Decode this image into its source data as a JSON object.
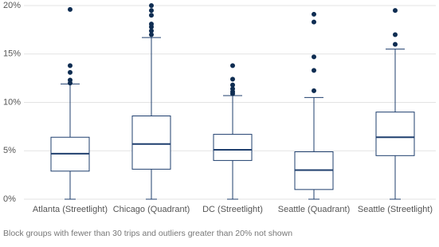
{
  "chart_data": {
    "type": "box",
    "categories": [
      "Atlanta (Streetlight)",
      "Chicago (Quadrant)",
      "DC (Streetlight)",
      "Seattle (Quadrant)",
      "Seattle (Streetlight)"
    ],
    "boxes": [
      {
        "low": 0,
        "q1": 2.9,
        "median": 4.7,
        "q3": 6.4,
        "high": 11.9,
        "outliers": [
          19.6,
          13.8,
          13.1,
          12.3,
          12.0
        ]
      },
      {
        "low": 0,
        "q1": 3.1,
        "median": 5.7,
        "q3": 8.6,
        "high": 16.7,
        "outliers": [
          20.0,
          19.5,
          19.0,
          18.1,
          17.8,
          17.4,
          17.0
        ]
      },
      {
        "low": 0,
        "q1": 4.0,
        "median": 5.1,
        "q3": 6.7,
        "high": 10.7,
        "outliers": [
          13.8,
          12.4,
          11.8,
          11.4,
          11.1,
          10.9
        ]
      },
      {
        "low": 0,
        "q1": 1.0,
        "median": 3.0,
        "q3": 4.9,
        "high": 10.5,
        "outliers": [
          19.1,
          18.3,
          14.7,
          13.3,
          11.2
        ]
      },
      {
        "low": 0,
        "q1": 4.5,
        "median": 6.4,
        "q3": 9.0,
        "high": 15.5,
        "outliers": [
          19.5,
          17.0,
          16.0
        ]
      }
    ],
    "color": "#1f3f6e",
    "outlier_color": "#0f2d52",
    "ylim": [
      0,
      20
    ],
    "yticks": [
      {
        "value": 0,
        "label": "0%"
      },
      {
        "value": 5,
        "label": "5%"
      },
      {
        "value": 10,
        "label": "10%"
      },
      {
        "value": 15,
        "label": "15%"
      },
      {
        "value": 20,
        "label": "20%"
      }
    ],
    "grid": true,
    "note": "Block groups with fewer than 30 trips and outliers greater than 20% not shown"
  }
}
